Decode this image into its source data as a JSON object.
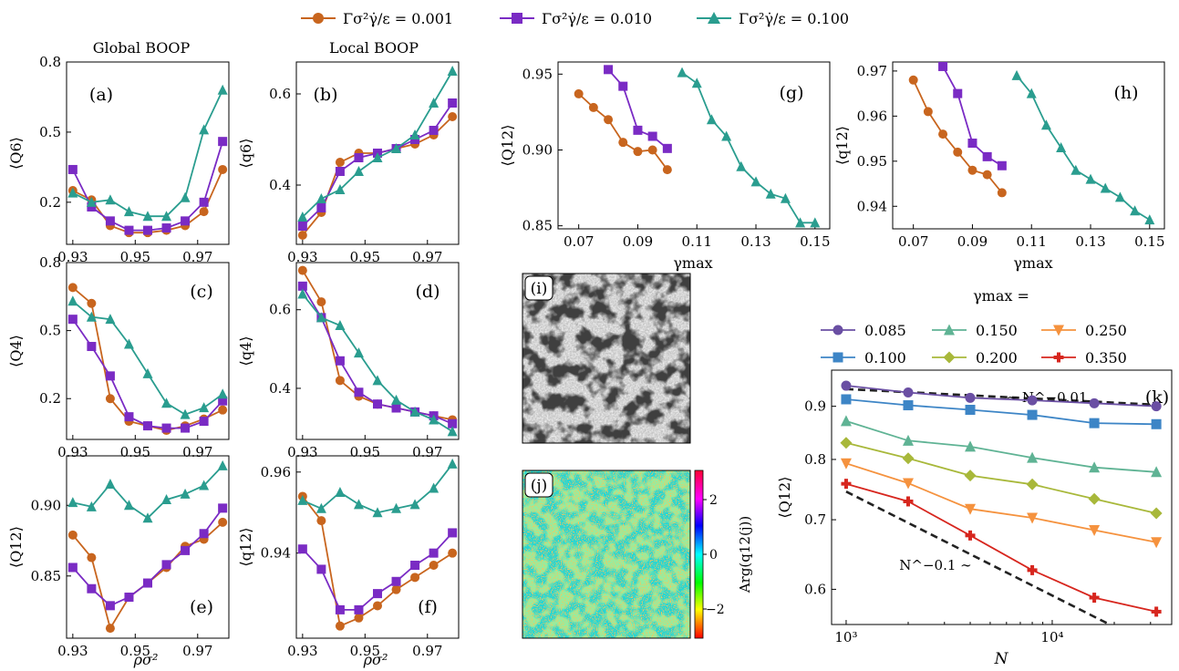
{
  "figure": {
    "legend_top": [
      {
        "label": "Γσ²γ̇/ε = 0.001",
        "color": "#c8651e",
        "marker": "circle"
      },
      {
        "label": "Γσ²γ̇/ε = 0.010",
        "color": "#7a2bc4",
        "marker": "square"
      },
      {
        "label": "Γσ²γ̇/ε = 0.100",
        "color": "#2a9d8f",
        "marker": "triangle"
      }
    ],
    "column_titles": [
      "Global BOOP",
      "Local BOOP"
    ],
    "xlabel_rho": "ρσ²",
    "xlabel_gamma": "γmax",
    "xlabel_N": "N",
    "colorbar_label": "Arg(q12(j))",
    "colorbar_ticks": [
      "2",
      "0",
      "−2"
    ],
    "k_legend_title": "γmax =",
    "k_legend": [
      {
        "label": "0.085",
        "color": "#6a4fa3",
        "marker": "circle"
      },
      {
        "label": "0.150",
        "color": "#5fb394",
        "marker": "triangle"
      },
      {
        "label": "0.250",
        "color": "#f5923e",
        "marker": "triangle-down"
      },
      {
        "label": "0.100",
        "color": "#3d85c6",
        "marker": "square"
      },
      {
        "label": "0.200",
        "color": "#a8b83a",
        "marker": "diamond"
      },
      {
        "label": "0.350",
        "color": "#d7261e",
        "marker": "plus"
      }
    ],
    "annotation_top": "∼ N^−0.01",
    "annotation_bottom": "N^−0.1 ∼"
  },
  "chart_data": [
    {
      "id": "a",
      "type": "line",
      "panel_label": "(a)",
      "ylabel": "⟨Q6⟩",
      "x": [
        0.93,
        0.936,
        0.942,
        0.948,
        0.954,
        0.96,
        0.966,
        0.972,
        0.978
      ],
      "xlim": [
        0.928,
        0.98
      ],
      "ylim": [
        0.02,
        0.8
      ],
      "xticks": [
        "0.93",
        "0.95",
        "0.97"
      ],
      "yticks": [
        "0.2",
        "0.5",
        "0.8"
      ],
      "series": [
        {
          "name": "0.001",
          "values": [
            0.25,
            0.21,
            0.1,
            0.07,
            0.07,
            0.08,
            0.1,
            0.16,
            0.34
          ]
        },
        {
          "name": "0.010",
          "values": [
            0.34,
            0.18,
            0.12,
            0.08,
            0.08,
            0.09,
            0.12,
            0.2,
            0.46
          ]
        },
        {
          "name": "0.100",
          "values": [
            0.24,
            0.2,
            0.21,
            0.16,
            0.14,
            0.14,
            0.22,
            0.51,
            0.68
          ]
        }
      ]
    },
    {
      "id": "b",
      "type": "line",
      "panel_label": "(b)",
      "ylabel": "⟨q6⟩",
      "x": [
        0.93,
        0.936,
        0.942,
        0.948,
        0.954,
        0.96,
        0.966,
        0.972,
        0.978
      ],
      "xlim": [
        0.928,
        0.98
      ],
      "ylim": [
        0.27,
        0.67
      ],
      "xticks": [
        "0.93",
        "0.95",
        "0.97"
      ],
      "yticks": [
        "0.4",
        "0.6"
      ],
      "series": [
        {
          "name": "0.001",
          "values": [
            0.29,
            0.34,
            0.45,
            0.47,
            0.47,
            0.48,
            0.49,
            0.51,
            0.55
          ]
        },
        {
          "name": "0.010",
          "values": [
            0.31,
            0.35,
            0.43,
            0.46,
            0.47,
            0.48,
            0.5,
            0.52,
            0.58
          ]
        },
        {
          "name": "0.100",
          "values": [
            0.33,
            0.37,
            0.39,
            0.43,
            0.46,
            0.48,
            0.51,
            0.58,
            0.65
          ]
        }
      ]
    },
    {
      "id": "c",
      "type": "line",
      "panel_label": "(c)",
      "ylabel": "⟨Q4⟩",
      "x": [
        0.93,
        0.936,
        0.942,
        0.948,
        0.954,
        0.96,
        0.966,
        0.972,
        0.978
      ],
      "xlim": [
        0.928,
        0.98
      ],
      "ylim": [
        0.02,
        0.8
      ],
      "xticks": [
        "0.93",
        "0.95",
        "0.97"
      ],
      "yticks": [
        "0.2",
        "0.5",
        "0.8"
      ],
      "series": [
        {
          "name": "0.001",
          "values": [
            0.69,
            0.62,
            0.2,
            0.1,
            0.08,
            0.06,
            0.08,
            0.11,
            0.15
          ]
        },
        {
          "name": "0.010",
          "values": [
            0.55,
            0.43,
            0.3,
            0.12,
            0.08,
            0.07,
            0.07,
            0.1,
            0.19
          ]
        },
        {
          "name": "0.100",
          "values": [
            0.63,
            0.56,
            0.55,
            0.44,
            0.31,
            0.18,
            0.13,
            0.16,
            0.22
          ]
        }
      ]
    },
    {
      "id": "d",
      "type": "line",
      "panel_label": "(d)",
      "ylabel": "⟨q4⟩",
      "x": [
        0.93,
        0.936,
        0.942,
        0.948,
        0.954,
        0.96,
        0.966,
        0.972,
        0.978
      ],
      "xlim": [
        0.928,
        0.98
      ],
      "ylim": [
        0.27,
        0.72
      ],
      "xticks": [
        "0.93",
        "0.95",
        "0.97"
      ],
      "yticks": [
        "0.4",
        "0.6"
      ],
      "series": [
        {
          "name": "0.001",
          "values": [
            0.7,
            0.62,
            0.42,
            0.38,
            0.36,
            0.35,
            0.34,
            0.33,
            0.32
          ]
        },
        {
          "name": "0.010",
          "values": [
            0.66,
            0.58,
            0.47,
            0.39,
            0.36,
            0.35,
            0.34,
            0.33,
            0.31
          ]
        },
        {
          "name": "0.100",
          "values": [
            0.64,
            0.58,
            0.56,
            0.49,
            0.42,
            0.37,
            0.34,
            0.32,
            0.29
          ]
        }
      ]
    },
    {
      "id": "e",
      "type": "line",
      "panel_label": "(e)",
      "ylabel": "⟨Q12⟩",
      "x": [
        0.93,
        0.936,
        0.942,
        0.948,
        0.954,
        0.96,
        0.966,
        0.972,
        0.978
      ],
      "xlim": [
        0.928,
        0.98
      ],
      "ylim": [
        0.806,
        0.935
      ],
      "xticks": [
        "0.93",
        "0.95",
        "0.97"
      ],
      "yticks": [
        "0.85",
        "0.90"
      ],
      "series": [
        {
          "name": "0.001",
          "values": [
            0.879,
            0.863,
            0.813,
            0.835,
            0.845,
            0.856,
            0.871,
            0.876,
            0.888
          ]
        },
        {
          "name": "0.010",
          "values": [
            0.856,
            0.841,
            0.829,
            0.835,
            0.845,
            0.858,
            0.868,
            0.88,
            0.898
          ]
        },
        {
          "name": "0.100",
          "values": [
            0.902,
            0.899,
            0.915,
            0.9,
            0.891,
            0.904,
            0.908,
            0.914,
            0.928
          ]
        }
      ]
    },
    {
      "id": "f",
      "type": "line",
      "panel_label": "(f)",
      "ylabel": "⟨q12⟩",
      "x": [
        0.93,
        0.936,
        0.942,
        0.948,
        0.954,
        0.96,
        0.966,
        0.972,
        0.978
      ],
      "xlim": [
        0.928,
        0.98
      ],
      "ylim": [
        0.919,
        0.964
      ],
      "xticks": [
        "0.93",
        "0.95",
        "0.97"
      ],
      "yticks": [
        "0.94",
        "0.96"
      ],
      "series": [
        {
          "name": "0.001",
          "values": [
            0.954,
            0.948,
            0.922,
            0.924,
            0.927,
            0.931,
            0.934,
            0.937,
            0.94
          ]
        },
        {
          "name": "0.010",
          "values": [
            0.941,
            0.936,
            0.926,
            0.926,
            0.93,
            0.933,
            0.937,
            0.94,
            0.945
          ]
        },
        {
          "name": "0.100",
          "values": [
            0.953,
            0.951,
            0.955,
            0.952,
            0.95,
            0.951,
            0.952,
            0.956,
            0.962
          ]
        }
      ]
    },
    {
      "id": "g",
      "type": "line",
      "panel_label": "(g)",
      "ylabel": "⟨Q12⟩",
      "xlabel": "γmax",
      "xlim": [
        0.063,
        0.155
      ],
      "ylim": [
        0.848,
        0.958
      ],
      "xticks": [
        "0.07",
        "0.09",
        "0.11",
        "0.13",
        "0.15"
      ],
      "yticks": [
        "0.85",
        "0.90",
        "0.95"
      ],
      "series": [
        {
          "name": "0.001",
          "x": [
            0.07,
            0.075,
            0.08,
            0.085,
            0.09,
            0.095,
            0.1
          ],
          "values": [
            0.937,
            0.928,
            0.92,
            0.905,
            0.899,
            0.9,
            0.887
          ]
        },
        {
          "name": "0.010",
          "x": [
            0.08,
            0.085,
            0.09,
            0.095,
            0.1
          ],
          "values": [
            0.953,
            0.942,
            0.913,
            0.909,
            0.901
          ]
        },
        {
          "name": "0.100",
          "x": [
            0.105,
            0.11,
            0.115,
            0.12,
            0.125,
            0.13,
            0.135,
            0.14,
            0.145,
            0.15
          ],
          "values": [
            0.951,
            0.944,
            0.92,
            0.909,
            0.889,
            0.879,
            0.871,
            0.868,
            0.852,
            0.852
          ]
        }
      ]
    },
    {
      "id": "h",
      "type": "line",
      "panel_label": "(h)",
      "ylabel": "⟨q12⟩",
      "xlabel": "γmax",
      "xlim": [
        0.063,
        0.155
      ],
      "ylim": [
        0.935,
        0.972
      ],
      "xticks": [
        "0.07",
        "0.09",
        "0.11",
        "0.13",
        "0.15"
      ],
      "yticks": [
        "0.94",
        "0.95",
        "0.96",
        "0.97"
      ],
      "series": [
        {
          "name": "0.001",
          "x": [
            0.07,
            0.075,
            0.08,
            0.085,
            0.09,
            0.095,
            0.1
          ],
          "values": [
            0.968,
            0.961,
            0.956,
            0.952,
            0.948,
            0.947,
            0.943
          ]
        },
        {
          "name": "0.010",
          "x": [
            0.08,
            0.085,
            0.09,
            0.095,
            0.1
          ],
          "values": [
            0.971,
            0.965,
            0.954,
            0.951,
            0.949
          ]
        },
        {
          "name": "0.100",
          "x": [
            0.105,
            0.11,
            0.115,
            0.12,
            0.125,
            0.13,
            0.135,
            0.14,
            0.145,
            0.15
          ],
          "values": [
            0.969,
            0.965,
            0.958,
            0.953,
            0.948,
            0.946,
            0.944,
            0.942,
            0.939,
            0.937
          ]
        }
      ]
    },
    {
      "id": "k",
      "type": "line",
      "panel_label": "(k)",
      "ylabel": "⟨Q12⟩",
      "xlabel": "N",
      "x": [
        1000,
        2000,
        4000,
        8000,
        16000,
        32000
      ],
      "xscale": "log",
      "yscale": "log",
      "xlim": [
        850,
        38000
      ],
      "ylim": [
        0.555,
        0.975
      ],
      "xticks": [
        "10³",
        "10⁴"
      ],
      "yticks": [
        "0.6",
        "0.7",
        "0.8",
        "0.9"
      ],
      "series": [
        {
          "name": "0.085",
          "values": [
            0.942,
            0.928,
            0.917,
            0.912,
            0.906,
            0.9
          ]
        },
        {
          "name": "0.100",
          "values": [
            0.914,
            0.902,
            0.893,
            0.883,
            0.867,
            0.865
          ]
        },
        {
          "name": "0.150",
          "values": [
            0.871,
            0.834,
            0.823,
            0.803,
            0.786,
            0.778
          ]
        },
        {
          "name": "0.200",
          "values": [
            0.83,
            0.802,
            0.772,
            0.757,
            0.733,
            0.71
          ]
        },
        {
          "name": "0.250",
          "values": [
            0.793,
            0.759,
            0.717,
            0.703,
            0.684,
            0.666
          ]
        },
        {
          "name": "0.350",
          "values": [
            0.758,
            0.729,
            0.676,
            0.626,
            0.589,
            0.571
          ]
        }
      ],
      "fits": [
        {
          "label": "∼ N^−0.01",
          "x": [
            1000,
            32000
          ],
          "values": [
            0.935,
            0.903
          ]
        },
        {
          "label": "N^−0.1 ∼",
          "x": [
            1000,
            19000
          ],
          "values": [
            0.745,
            0.555
          ]
        }
      ]
    }
  ],
  "images": [
    {
      "panel_label": "(i)"
    },
    {
      "panel_label": "(j)"
    }
  ]
}
